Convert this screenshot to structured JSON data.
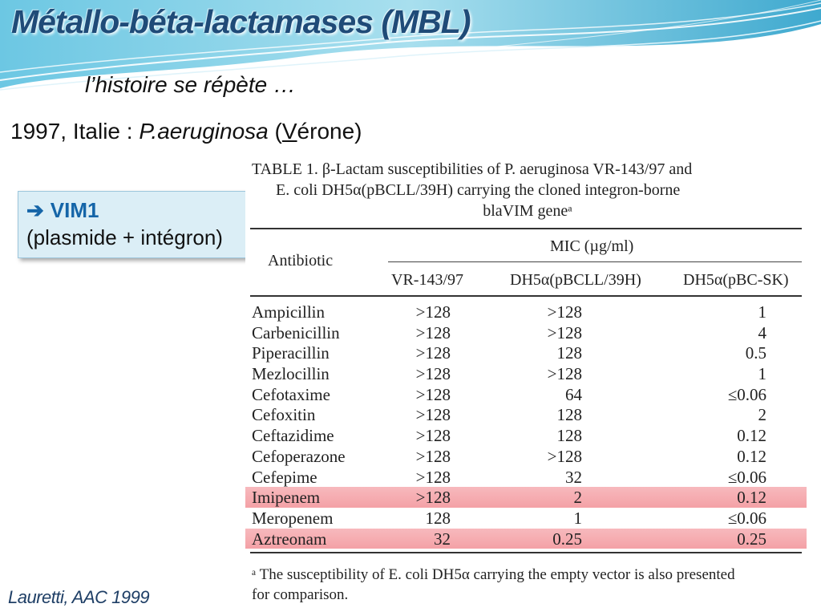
{
  "title": "Métallo-béta-lactamases (MBL)",
  "subtitle": "l’histoire se répète …",
  "intro": {
    "year": "1997, Italie : ",
    "organism": "P.aeruginosa",
    "paren_open": " (",
    "v": "V",
    "rest": "érone)"
  },
  "callout": {
    "arrow": "➔",
    "head": "VIM1",
    "body": "(plasmide + intégron)"
  },
  "table": {
    "caption_l1": "TABLE 1. β-Lactam susceptibilities of P. aeruginosa VR-143/97 and",
    "caption_l2": "E. coli DH5α(pBCLL/39H) carrying the cloned integron-borne",
    "caption_l3": "blaVIM geneᵃ",
    "col_antibiotic": "Antibiotic",
    "col_mic": "MIC (µg/ml)",
    "col_vr": "VR-143/97",
    "col_dh": "DH5α(pBCLL/39H)",
    "col_bc": "DH5α(pBC-SK)",
    "rows": [
      {
        "name": "Ampicillin",
        "vr": ">128",
        "dh": ">128",
        "bc": "1"
      },
      {
        "name": "Carbenicillin",
        "vr": ">128",
        "dh": ">128",
        "bc": "4"
      },
      {
        "name": "Piperacillin",
        "vr": ">128",
        "dh": "128",
        "bc": "0.5"
      },
      {
        "name": "Mezlocillin",
        "vr": ">128",
        "dh": ">128",
        "bc": "1"
      },
      {
        "name": "Cefotaxime",
        "vr": ">128",
        "dh": "64",
        "bc": "≤0.06"
      },
      {
        "name": "Cefoxitin",
        "vr": ">128",
        "dh": "128",
        "bc": "2"
      },
      {
        "name": "Ceftazidime",
        "vr": ">128",
        "dh": "128",
        "bc": "0.12"
      },
      {
        "name": "Cefoperazone",
        "vr": ">128",
        "dh": ">128",
        "bc": "0.12"
      },
      {
        "name": "Cefepime",
        "vr": ">128",
        "dh": "32",
        "bc": "≤0.06"
      },
      {
        "name": "Imipenem",
        "vr": ">128",
        "dh": "2",
        "bc": "0.12"
      },
      {
        "name": "Meropenem",
        "vr": "128",
        "dh": "1",
        "bc": "≤0.06"
      },
      {
        "name": "Aztreonam",
        "vr": "32",
        "dh": "0.25",
        "bc": "0.25"
      }
    ],
    "footnote_l1": "ᵃ The susceptibility of E. coli DH5α carrying the empty vector is also presented",
    "footnote_l2": "for comparison."
  },
  "source": "Lauretti, AAC 1999",
  "colors": {
    "title": "#1f4b78",
    "callout_head": "#1565a8",
    "highlight": "#f4a1a6",
    "callout_bg": "#dbeef6"
  }
}
